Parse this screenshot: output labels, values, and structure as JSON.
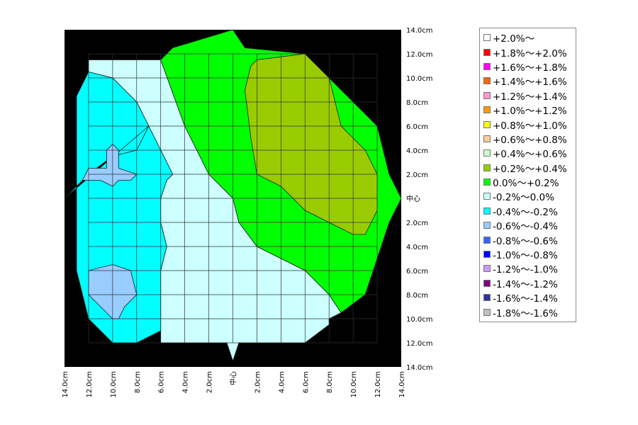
{
  "chart_data": {
    "type": "heatmap",
    "x_ticks": [
      "14.0cm",
      "12.0cm",
      "10.0cm",
      "8.0cm",
      "6.0cm",
      "4.0cm",
      "2.0cm",
      "中心",
      "2.0cm",
      "4.0cm",
      "6.0cm",
      "8.0cm",
      "10.0cm",
      "12.0cm",
      "14.0cm"
    ],
    "y_ticks": [
      "14.0cm",
      "12.0cm",
      "10.0cm",
      "8.0cm",
      "6.0cm",
      "4.0cm",
      "2.0cm",
      "中心",
      "2.0cm",
      "4.0cm",
      "6.0cm",
      "8.0cm",
      "10.0cm",
      "12.0cm",
      "14.0cm"
    ],
    "xlim": [
      -14,
      14
    ],
    "ylim": [
      -14,
      14
    ],
    "grid": true,
    "regions": [
      {
        "range": "-0.2%～0.0%",
        "color": "#ccffff",
        "points": [
          [
            -12,
            11.5
          ],
          [
            -6,
            11.5
          ],
          [
            -4,
            6
          ],
          [
            -2,
            2
          ],
          [
            0,
            0
          ],
          [
            0.5,
            -2
          ],
          [
            2,
            -4
          ],
          [
            4,
            -5
          ],
          [
            6,
            -6
          ],
          [
            8,
            -8
          ],
          [
            9,
            -9.5
          ],
          [
            8,
            -10
          ],
          [
            8,
            -10.5
          ],
          [
            6,
            -12
          ],
          [
            0.5,
            -12
          ],
          [
            0,
            -13.5
          ],
          [
            -0.5,
            -12
          ],
          [
            -6,
            -12
          ],
          [
            -6,
            -11
          ],
          [
            -6,
            -9.5
          ],
          [
            -6,
            -6
          ],
          [
            -5.5,
            -4
          ],
          [
            -6,
            -2
          ],
          [
            -6,
            0
          ],
          [
            -5.5,
            1.5
          ],
          [
            -5,
            2
          ],
          [
            -6,
            4
          ],
          [
            -7,
            6
          ],
          [
            -8,
            8
          ],
          [
            -9,
            9
          ],
          [
            -10,
            10
          ],
          [
            -12,
            10.5
          ]
        ]
      },
      {
        "range": "-0.4%～-0.2%",
        "color": "#00ffff",
        "points": [
          [
            -14,
            0
          ],
          [
            -12,
            2
          ],
          [
            -10,
            3.5
          ],
          [
            -8,
            4
          ],
          [
            -7,
            6
          ],
          [
            -8,
            8
          ],
          [
            -9,
            9
          ],
          [
            -10,
            10
          ],
          [
            -12,
            10.5
          ],
          [
            -13,
            8.5
          ],
          [
            -13,
            5.5
          ],
          [
            -13,
            -6
          ],
          [
            -12,
            -10
          ],
          [
            -10,
            -12
          ],
          [
            -8,
            -12
          ],
          [
            -6,
            -11
          ],
          [
            -6,
            -9.5
          ],
          [
            -6,
            -6
          ],
          [
            -5.5,
            -4
          ],
          [
            -6,
            -2
          ],
          [
            -6,
            0
          ],
          [
            -5.5,
            1.5
          ],
          [
            -5,
            2
          ],
          [
            -6,
            4
          ],
          [
            -7,
            6
          ]
        ]
      },
      {
        "range": "0.0%～+0.2%",
        "color": "#00ff00",
        "points": [
          [
            -6,
            11.5
          ],
          [
            -5,
            12.5
          ],
          [
            0,
            14
          ],
          [
            1,
            12.5
          ],
          [
            6,
            12
          ],
          [
            8,
            10
          ],
          [
            12,
            6
          ],
          [
            13,
            2
          ],
          [
            14,
            0
          ],
          [
            13,
            -2
          ],
          [
            12,
            -5
          ],
          [
            11,
            -8
          ],
          [
            9,
            -9.5
          ],
          [
            8,
            -8
          ],
          [
            6,
            -6
          ],
          [
            4,
            -5
          ],
          [
            2,
            -4
          ],
          [
            0.5,
            -2
          ],
          [
            0,
            0
          ],
          [
            -2,
            2
          ],
          [
            -4,
            6
          ]
        ]
      },
      {
        "range": "+0.2%～+0.4%",
        "color": "#99cc00",
        "points": [
          [
            2,
            11.5
          ],
          [
            6,
            12
          ],
          [
            8,
            10
          ],
          [
            9,
            6
          ],
          [
            11,
            4
          ],
          [
            12,
            2
          ],
          [
            12,
            -1
          ],
          [
            11,
            -3
          ],
          [
            10,
            -3
          ],
          [
            8,
            -2
          ],
          [
            6,
            -1
          ],
          [
            4,
            1
          ],
          [
            2,
            2
          ],
          [
            1.5,
            5
          ],
          [
            1,
            9
          ],
          [
            1.5,
            11
          ]
        ]
      },
      {
        "range": "-0.6%～-0.4%",
        "color": "#99ccff",
        "points": [
          [
            -12,
            2.5
          ],
          [
            -10.5,
            2.5
          ],
          [
            -10.5,
            4
          ],
          [
            -10,
            4.5
          ],
          [
            -9.5,
            4
          ],
          [
            -9.5,
            2.5
          ],
          [
            -8,
            2
          ],
          [
            -8.5,
            1.5
          ],
          [
            -9.5,
            1.5
          ],
          [
            -10,
            1
          ],
          [
            -11,
            1.5
          ],
          [
            -12.5,
            1.5
          ]
        ]
      },
      {
        "range": "-0.6%～-0.4%",
        "color": "#99ccff",
        "points": [
          [
            -12,
            -6
          ],
          [
            -10,
            -5.5
          ],
          [
            -8.5,
            -6
          ],
          [
            -8,
            -8
          ],
          [
            -9,
            -9
          ],
          [
            -9.5,
            -10
          ],
          [
            -10,
            -10
          ],
          [
            -11,
            -9
          ],
          [
            -12,
            -8
          ]
        ]
      }
    ],
    "legend": [
      {
        "label": "+2.0%～",
        "color": "#ffffff"
      },
      {
        "label": "+1.8%～+2.0%",
        "color": "#ff0000"
      },
      {
        "label": "+1.6%～+1.8%",
        "color": "#ff00ff"
      },
      {
        "label": "+1.4%～+1.6%",
        "color": "#ff6600"
      },
      {
        "label": "+1.2%～+1.4%",
        "color": "#ff99cc"
      },
      {
        "label": "+1.0%～+1.2%",
        "color": "#ff9900"
      },
      {
        "label": "+0.8%～+1.0%",
        "color": "#ffff00"
      },
      {
        "label": "+0.6%～+0.8%",
        "color": "#ffcc99"
      },
      {
        "label": "+0.4%～+0.6%",
        "color": "#ccffcc"
      },
      {
        "label": "+0.2%～+0.4%",
        "color": "#99cc00"
      },
      {
        "label": "0.0%～+0.2%",
        "color": "#00ff00"
      },
      {
        "label": "-0.2%～0.0%",
        "color": "#ccffff"
      },
      {
        "label": "-0.4%～-0.2%",
        "color": "#00ffff"
      },
      {
        "label": "-0.6%～-0.4%",
        "color": "#99ccff"
      },
      {
        "label": "-0.8%～-0.6%",
        "color": "#3366ff"
      },
      {
        "label": "-1.0%～-0.8%",
        "color": "#0000ff"
      },
      {
        "label": "-1.2%～-1.0%",
        "color": "#cc99ff"
      },
      {
        "label": "-1.4%～-1.2%",
        "color": "#800080"
      },
      {
        "label": "-1.6%～-1.4%",
        "color": "#333399"
      },
      {
        "label": "-1.8%～-1.6%",
        "color": "#c0c0c0"
      }
    ]
  }
}
